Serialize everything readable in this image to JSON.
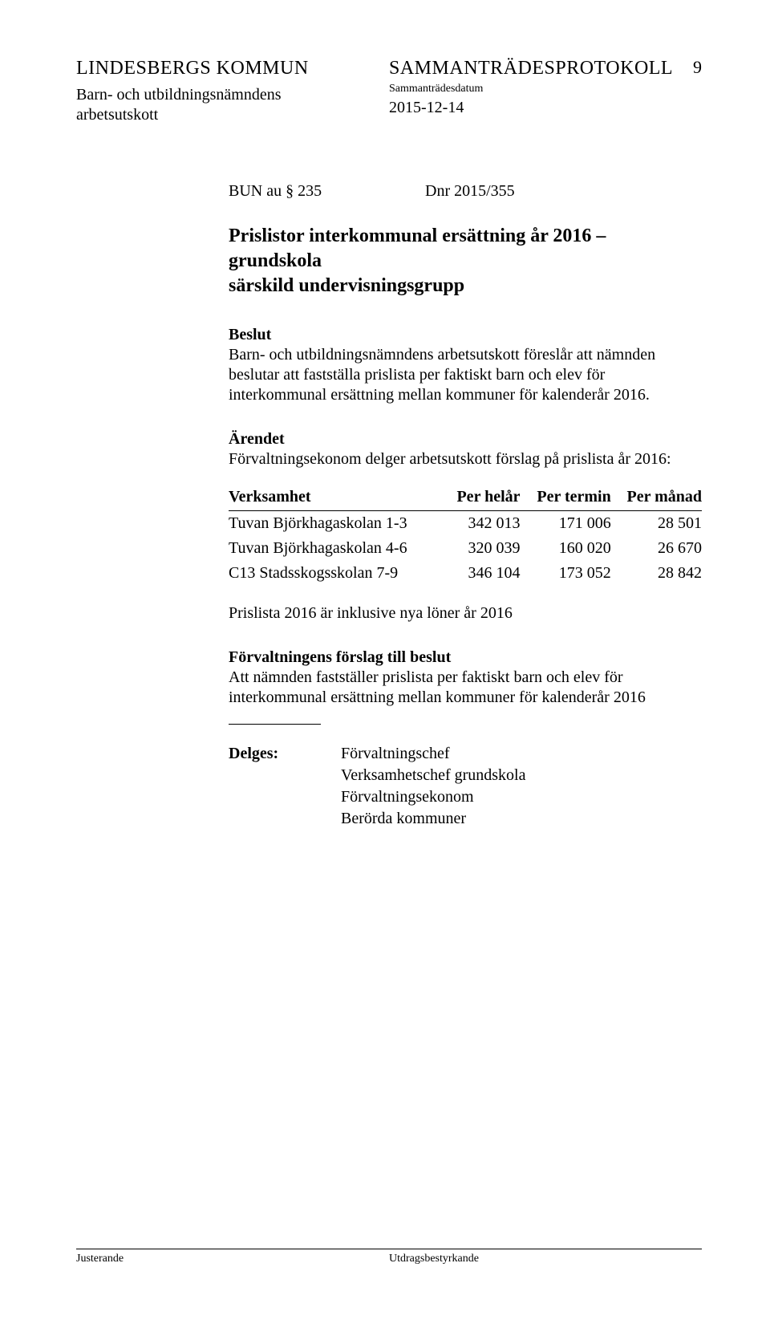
{
  "header": {
    "org": "LINDESBERGS KOMMUN",
    "subunit_line1": "Barn- och utbildningsnämndens",
    "subunit_line2": "arbetsutskott",
    "protokoll": "SAMMANTRÄDESPROTOKOLL",
    "date_label": "Sammanträdesdatum",
    "date": "2015-12-14",
    "page_no": "9"
  },
  "item": {
    "bun": "BUN au § 235",
    "dnr": "Dnr 2015/355"
  },
  "title_l1": "Prislistor interkommunal ersättning år 2016 – grundskola",
  "title_l2": "särskild undervisningsgrupp",
  "beslut_label": "Beslut",
  "beslut_text": "Barn- och utbildningsnämndens arbetsutskott föreslår att nämnden beslutar att fastställa prislista per faktiskt barn och elev för interkommunal ersättning mellan kommuner för kalenderår 2016.",
  "arendet_label": "Ärendet",
  "arendet_text": "Förvaltningsekonom delger arbetsutskott förslag på prislista år 2016:",
  "table": {
    "columns": [
      "Verksamhet",
      "Per helår",
      "Per termin",
      "Per månad"
    ],
    "rows": [
      [
        "Tuvan Björkhagaskolan 1-3",
        "342 013",
        "171 006",
        "28 501"
      ],
      [
        "Tuvan Björkhagaskolan 4-6",
        "320 039",
        "160 020",
        "26 670"
      ],
      [
        "C13 Stadsskogsskolan 7-9",
        "346 104",
        "173 052",
        "28 842"
      ]
    ]
  },
  "note": "Prislista 2016 är inklusive nya löner år 2016",
  "forslag_label": "Förvaltningens förslag till beslut",
  "forslag_text": "Att nämnden fastställer prislista per faktiskt barn och elev för interkommunal ersättning mellan kommuner för kalenderår 2016",
  "delges_label": "Delges:",
  "delges_lines": [
    "Förvaltningschef",
    "Verksamhetschef grundskola",
    "Förvaltningsekonom",
    "Berörda kommuner"
  ],
  "footer": {
    "left": "Justerande",
    "right": "Utdragsbestyrkande"
  }
}
